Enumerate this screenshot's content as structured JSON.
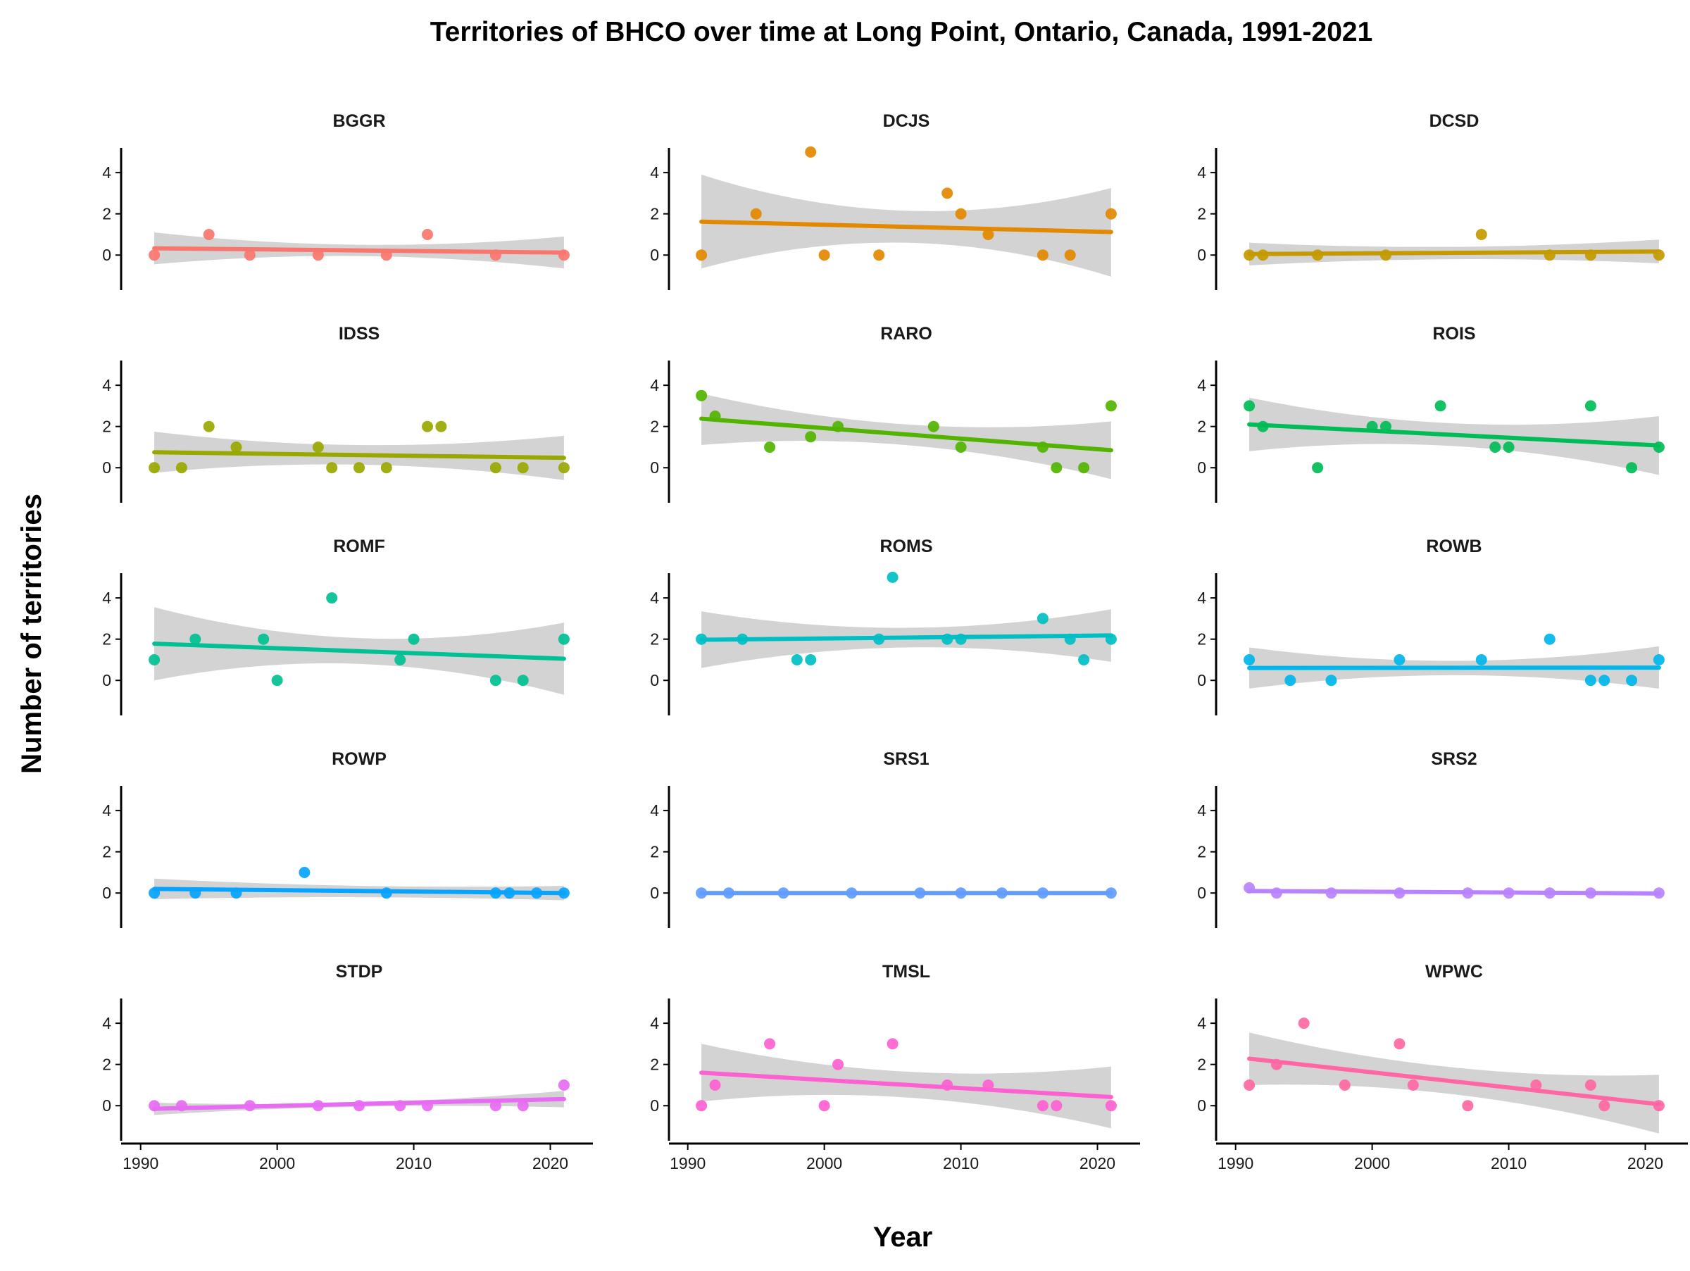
{
  "chart_data": {
    "type": "scatter",
    "title": "Territories of BHCO over time at Long Point, Ontario, Canada, 1991-2021",
    "xlabel": "Year",
    "ylabel": "Number of territories",
    "xlim": [
      1989.5,
      2022.5
    ],
    "ylim": [
      -1.7,
      5.2
    ],
    "x_ticks": [
      "1990",
      "2000",
      "2010",
      "2020"
    ],
    "y_ticks": [
      "0",
      "2",
      "4"
    ],
    "grid": false,
    "legend": "none",
    "trend": "linear fit with confidence band",
    "band_color": "#d3d3d3",
    "panels": [
      {
        "name": "BGGR",
        "color": "#F8766D",
        "points": [
          [
            1991,
            0
          ],
          [
            1995,
            1
          ],
          [
            1998,
            0
          ],
          [
            2003,
            0
          ],
          [
            2008,
            0
          ],
          [
            2011,
            1
          ],
          [
            2016,
            0
          ],
          [
            2021,
            0
          ]
        ],
        "fit": {
          "x": [
            1991,
            2021
          ],
          "y": [
            0.33,
            0.12
          ]
        },
        "band": {
          "x": [
            1991,
            2006,
            2021
          ],
          "upper": [
            1.1,
            0.5,
            0.9
          ],
          "lower": [
            -0.45,
            -0.05,
            -0.65
          ]
        }
      },
      {
        "name": "DCJS",
        "color": "#E38900",
        "points": [
          [
            1991,
            0
          ],
          [
            1995,
            2
          ],
          [
            1999,
            5
          ],
          [
            2000,
            0
          ],
          [
            2004,
            0
          ],
          [
            2009,
            3
          ],
          [
            2010,
            2
          ],
          [
            2012,
            1
          ],
          [
            2016,
            0
          ],
          [
            2018,
            0
          ],
          [
            2021,
            2
          ]
        ],
        "fit": {
          "x": [
            1991,
            2021
          ],
          "y": [
            1.62,
            1.12
          ]
        },
        "band": {
          "x": [
            1991,
            2006,
            2021
          ],
          "upper": [
            3.9,
            2.15,
            3.25
          ],
          "lower": [
            -0.65,
            0.6,
            -1.05
          ]
        }
      },
      {
        "name": "DCSD",
        "color": "#C49A00",
        "points": [
          [
            1991,
            0
          ],
          [
            1992,
            0
          ],
          [
            1996,
            0
          ],
          [
            2001,
            0
          ],
          [
            2008,
            1
          ],
          [
            2013,
            0
          ],
          [
            2016,
            0
          ],
          [
            2021,
            0
          ]
        ],
        "fit": {
          "x": [
            1991,
            2021
          ],
          "y": [
            0.05,
            0.17
          ]
        },
        "band": {
          "x": [
            1991,
            2006,
            2021
          ],
          "upper": [
            0.6,
            0.4,
            0.75
          ],
          "lower": [
            -0.5,
            -0.2,
            -0.4
          ]
        }
      },
      {
        "name": "IDSS",
        "color": "#99A800",
        "points": [
          [
            1991,
            0
          ],
          [
            1993,
            0
          ],
          [
            1995,
            2
          ],
          [
            1997,
            1
          ],
          [
            2003,
            1
          ],
          [
            2004,
            0
          ],
          [
            2006,
            0
          ],
          [
            2008,
            0
          ],
          [
            2011,
            2
          ],
          [
            2012,
            2
          ],
          [
            2016,
            0
          ],
          [
            2018,
            0
          ],
          [
            2021,
            0
          ]
        ],
        "fit": {
          "x": [
            1991,
            2021
          ],
          "y": [
            0.75,
            0.48
          ]
        },
        "band": {
          "x": [
            1991,
            2006,
            2021
          ],
          "upper": [
            1.75,
            1.1,
            1.55
          ],
          "lower": [
            -0.25,
            0.15,
            -0.6
          ]
        }
      },
      {
        "name": "RARO",
        "color": "#53B400",
        "points": [
          [
            1991,
            3.5
          ],
          [
            1992,
            2.5
          ],
          [
            1996,
            1
          ],
          [
            1999,
            1.5
          ],
          [
            2001,
            2
          ],
          [
            2008,
            2
          ],
          [
            2010,
            1
          ],
          [
            2016,
            1
          ],
          [
            2017,
            0
          ],
          [
            2019,
            0
          ],
          [
            2021,
            3
          ]
        ],
        "fit": {
          "x": [
            1991,
            2021
          ],
          "y": [
            2.38,
            0.85
          ]
        },
        "band": {
          "x": [
            1991,
            2006,
            2021
          ],
          "upper": [
            3.6,
            2.1,
            2.25
          ],
          "lower": [
            1.1,
            1.1,
            -0.55
          ]
        }
      },
      {
        "name": "ROIS",
        "color": "#00BC56",
        "points": [
          [
            1991,
            3
          ],
          [
            1992,
            2
          ],
          [
            1996,
            0
          ],
          [
            2000,
            2
          ],
          [
            2001,
            2
          ],
          [
            2005,
            3
          ],
          [
            2009,
            1
          ],
          [
            2010,
            1
          ],
          [
            2016,
            3
          ],
          [
            2019,
            0
          ],
          [
            2021,
            1
          ]
        ],
        "fit": {
          "x": [
            1991,
            2021
          ],
          "y": [
            2.1,
            1.08
          ]
        },
        "band": {
          "x": [
            1991,
            2006,
            2021
          ],
          "upper": [
            3.4,
            2.15,
            2.5
          ],
          "lower": [
            0.8,
            1.05,
            -0.35
          ]
        }
      },
      {
        "name": "ROMF",
        "color": "#00C094",
        "points": [
          [
            1991,
            1
          ],
          [
            1994,
            2
          ],
          [
            1999,
            2
          ],
          [
            2000,
            0
          ],
          [
            2004,
            4
          ],
          [
            2009,
            1
          ],
          [
            2010,
            2
          ],
          [
            2016,
            0
          ],
          [
            2018,
            0
          ],
          [
            2021,
            2
          ]
        ],
        "fit": {
          "x": [
            1991,
            2021
          ],
          "y": [
            1.78,
            1.05
          ]
        },
        "band": {
          "x": [
            1991,
            2006,
            2021
          ],
          "upper": [
            3.55,
            2.05,
            2.8
          ],
          "lower": [
            0.0,
            0.8,
            -0.7
          ]
        }
      },
      {
        "name": "ROMS",
        "color": "#00BFC4",
        "points": [
          [
            1991,
            2
          ],
          [
            1994,
            2
          ],
          [
            1998,
            1
          ],
          [
            1999,
            1
          ],
          [
            2004,
            2
          ],
          [
            2005,
            5
          ],
          [
            2009,
            2
          ],
          [
            2010,
            2
          ],
          [
            2016,
            3
          ],
          [
            2018,
            2
          ],
          [
            2019,
            1
          ],
          [
            2021,
            2
          ]
        ],
        "fit": {
          "x": [
            1991,
            2021
          ],
          "y": [
            1.97,
            2.18
          ]
        },
        "band": {
          "x": [
            1991,
            2006,
            2021
          ],
          "upper": [
            3.35,
            2.55,
            3.45
          ],
          "lower": [
            0.6,
            1.6,
            0.9
          ]
        }
      },
      {
        "name": "ROWB",
        "color": "#00B6EB",
        "points": [
          [
            1991,
            1
          ],
          [
            1994,
            0
          ],
          [
            1997,
            0
          ],
          [
            2002,
            1
          ],
          [
            2008,
            1
          ],
          [
            2013,
            2
          ],
          [
            2016,
            0
          ],
          [
            2017,
            0
          ],
          [
            2019,
            0
          ],
          [
            2021,
            1
          ]
        ],
        "fit": {
          "x": [
            1991,
            2021
          ],
          "y": [
            0.6,
            0.62
          ]
        },
        "band": {
          "x": [
            1991,
            2006,
            2021
          ],
          "upper": [
            1.6,
            0.95,
            1.65
          ],
          "lower": [
            -0.4,
            0.25,
            -0.4
          ]
        }
      },
      {
        "name": "ROWP",
        "color": "#06A4FF",
        "points": [
          [
            1991,
            0
          ],
          [
            1994,
            0
          ],
          [
            1997,
            0
          ],
          [
            2002,
            1
          ],
          [
            2008,
            0
          ],
          [
            2016,
            0
          ],
          [
            2017,
            0
          ],
          [
            2019,
            0
          ],
          [
            2021,
            0
          ]
        ],
        "fit": {
          "x": [
            1991,
            2021
          ],
          "y": [
            0.2,
            0.0
          ]
        },
        "band": {
          "x": [
            1991,
            2006,
            2021
          ],
          "upper": [
            0.7,
            0.35,
            0.35
          ],
          "lower": [
            -0.3,
            -0.2,
            -0.35
          ]
        }
      },
      {
        "name": "SRS1",
        "color": "#619CFF",
        "points": [
          [
            1991,
            0
          ],
          [
            1993,
            0
          ],
          [
            1997,
            0
          ],
          [
            2002,
            0
          ],
          [
            2007,
            0
          ],
          [
            2010,
            0
          ],
          [
            2013,
            0
          ],
          [
            2016,
            0
          ],
          [
            2021,
            0
          ]
        ],
        "fit": {
          "x": [
            1991,
            2021
          ],
          "y": [
            0.0,
            0.0
          ]
        },
        "band": {
          "x": [
            1991,
            2006,
            2021
          ],
          "upper": [
            0.0,
            0.0,
            0.0
          ],
          "lower": [
            0.0,
            0.0,
            0.0
          ]
        }
      },
      {
        "name": "SRS2",
        "color": "#B983FF",
        "points": [
          [
            1991,
            0.25
          ],
          [
            1993,
            0
          ],
          [
            1997,
            0
          ],
          [
            2002,
            0
          ],
          [
            2007,
            0
          ],
          [
            2010,
            0
          ],
          [
            2013,
            0
          ],
          [
            2016,
            0
          ],
          [
            2021,
            0
          ]
        ],
        "fit": {
          "x": [
            1991,
            2021
          ],
          "y": [
            0.1,
            -0.02
          ]
        },
        "band": {
          "x": [
            1991,
            2006,
            2021
          ],
          "upper": [
            0.2,
            0.08,
            0.06
          ],
          "lower": [
            0.0,
            -0.04,
            -0.08
          ]
        }
      },
      {
        "name": "STDP",
        "color": "#E76BF3",
        "points": [
          [
            1991,
            0
          ],
          [
            1993,
            0
          ],
          [
            1998,
            0
          ],
          [
            2003,
            0
          ],
          [
            2006,
            0
          ],
          [
            2009,
            0
          ],
          [
            2011,
            0
          ],
          [
            2016,
            0
          ],
          [
            2018,
            0
          ],
          [
            2021,
            1
          ]
        ],
        "fit": {
          "x": [
            1991,
            2021
          ],
          "y": [
            -0.15,
            0.32
          ]
        },
        "band": {
          "x": [
            1991,
            2006,
            2021
          ],
          "upper": [
            0.15,
            0.15,
            0.72
          ],
          "lower": [
            -0.45,
            -0.05,
            -0.08
          ]
        }
      },
      {
        "name": "TMSL",
        "color": "#FD61D1",
        "points": [
          [
            1991,
            0
          ],
          [
            1992,
            1
          ],
          [
            1996,
            3
          ],
          [
            2000,
            0
          ],
          [
            2001,
            2
          ],
          [
            2005,
            3
          ],
          [
            2009,
            1
          ],
          [
            2012,
            1
          ],
          [
            2016,
            0
          ],
          [
            2017,
            0
          ],
          [
            2021,
            0
          ]
        ],
        "fit": {
          "x": [
            1991,
            2021
          ],
          "y": [
            1.6,
            0.42
          ]
        },
        "band": {
          "x": [
            1991,
            2006,
            2021
          ],
          "upper": [
            3.0,
            1.65,
            1.9
          ],
          "lower": [
            0.2,
            0.4,
            -1.1
          ]
        }
      },
      {
        "name": "WPWC",
        "color": "#FF67A4",
        "points": [
          [
            1991,
            1
          ],
          [
            1993,
            2
          ],
          [
            1995,
            4
          ],
          [
            1998,
            1
          ],
          [
            2002,
            3
          ],
          [
            2003,
            1
          ],
          [
            2007,
            0
          ],
          [
            2012,
            1
          ],
          [
            2016,
            1
          ],
          [
            2017,
            0
          ],
          [
            2021,
            0
          ]
        ],
        "fit": {
          "x": [
            1991,
            2021
          ],
          "y": [
            2.28,
            0.07
          ]
        },
        "band": {
          "x": [
            1991,
            2006,
            2021
          ],
          "upper": [
            3.55,
            1.85,
            1.5
          ],
          "lower": [
            1.0,
            0.55,
            -1.35
          ]
        }
      }
    ]
  }
}
